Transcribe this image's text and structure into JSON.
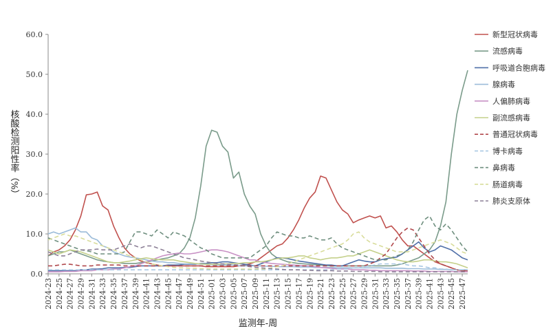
{
  "chart_data": {
    "type": "line",
    "xlabel": "监测年-周",
    "ylabel": "核酸检测阳性率（%）",
    "ylim": [
      0,
      60
    ],
    "yticks": [
      "0.0",
      "10.0",
      "20.0",
      "30.0",
      "40.0",
      "50.0",
      "60.0"
    ],
    "grid": false,
    "legend": "right",
    "x": [
      "2024-23",
      "2024-24",
      "2024-25",
      "2024-26",
      "2024-27",
      "2024-28",
      "2024-29",
      "2024-30",
      "2024-31",
      "2024-32",
      "2024-33",
      "2024-34",
      "2024-35",
      "2024-36",
      "2024-37",
      "2024-38",
      "2024-39",
      "2024-40",
      "2024-41",
      "2024-42",
      "2024-43",
      "2024-44",
      "2024-45",
      "2024-46",
      "2024-47",
      "2024-48",
      "2024-49",
      "2024-50",
      "2024-51",
      "2024-52",
      "2025-01",
      "2025-02",
      "2025-03",
      "2025-04",
      "2025-05",
      "2025-06",
      "2025-07",
      "2025-08",
      "2025-09",
      "2025-10",
      "2025-11",
      "2025-12",
      "2025-13",
      "2025-14",
      "2025-15",
      "2025-16",
      "2025-17",
      "2025-18",
      "2025-19",
      "2025-20",
      "2025-21",
      "2025-22",
      "2025-23",
      "2025-24",
      "2025-25",
      "2025-26",
      "2025-27",
      "2025-28",
      "2025-29",
      "2025-30",
      "2025-31",
      "2025-32",
      "2025-33",
      "2025-34",
      "2025-35",
      "2025-36",
      "2025-37",
      "2025-38",
      "2025-39",
      "2025-40",
      "2025-41",
      "2025-42",
      "2025-43",
      "2025-44",
      "2025-45",
      "2025-46",
      "2025-47",
      "2025-48"
    ],
    "xtick_labels": [
      "2024-23",
      "2024-25",
      "2024-27",
      "2024-29",
      "2024-31",
      "2024-33",
      "2024-35",
      "2024-37",
      "2024-39",
      "2024-41",
      "2024-43",
      "2024-45",
      "2024-47",
      "2024-49",
      "2024-51",
      "2025-01",
      "2025-03",
      "2025-05",
      "2025-07",
      "2025-09",
      "2025-11",
      "2025-13",
      "2025-15",
      "2025-17",
      "2025-19",
      "2025-21",
      "2025-23",
      "2025-25",
      "2025-27",
      "2025-29",
      "2025-31",
      "2025-33",
      "2025-35",
      "2025-37",
      "2025-39",
      "2025-41",
      "2025-43",
      "2025-45",
      "2025-47"
    ],
    "series": [
      {
        "name": "新型冠状病毒",
        "color": "#c0504d",
        "dash": false,
        "values": [
          4.5,
          5.5,
          6.0,
          7.0,
          8.5,
          11.0,
          14.5,
          19.8,
          20.0,
          20.5,
          17.0,
          16.0,
          12.0,
          9.0,
          6.5,
          5.0,
          4.0,
          3.2,
          2.8,
          2.5,
          2.2,
          2.0,
          2.0,
          2.0,
          2.0,
          2.0,
          2.0,
          2.0,
          2.0,
          1.8,
          1.8,
          1.8,
          1.8,
          1.8,
          1.8,
          2.0,
          2.2,
          2.5,
          3.0,
          4.0,
          5.0,
          6.0,
          7.0,
          7.5,
          9.0,
          11.0,
          13.5,
          16.5,
          19.0,
          20.5,
          24.5,
          24.0,
          21.0,
          18.0,
          16.0,
          15.0,
          12.8,
          13.5,
          14.0,
          14.5,
          14.0,
          14.5,
          11.5,
          12.0,
          10.5,
          8.5,
          7.0,
          7.0,
          6.0,
          5.0,
          4.0,
          3.0,
          2.5,
          2.0,
          1.5,
          1.0,
          0.8,
          0.8
        ]
      },
      {
        "name": "流感病毒",
        "color": "#7a9b8a",
        "dash": false,
        "values": [
          4.5,
          5.0,
          5.5,
          5.5,
          6.0,
          5.5,
          5.0,
          4.5,
          4.0,
          3.5,
          3.2,
          3.0,
          2.8,
          2.8,
          2.6,
          2.6,
          2.6,
          2.8,
          3.0,
          3.2,
          3.5,
          3.8,
          4.0,
          4.5,
          5.0,
          6.5,
          9.0,
          14.0,
          22.0,
          32.0,
          36.0,
          35.5,
          32.0,
          30.5,
          24.0,
          25.5,
          20.0,
          17.0,
          15.0,
          10.0,
          7.0,
          5.0,
          4.0,
          3.5,
          3.0,
          2.8,
          2.6,
          2.5,
          2.4,
          2.3,
          2.2,
          2.1,
          2.0,
          2.0,
          2.0,
          2.0,
          2.0,
          2.0,
          2.0,
          2.0,
          2.0,
          2.0,
          2.0,
          2.0,
          2.2,
          2.5,
          3.0,
          3.5,
          4.0,
          5.0,
          6.0,
          8.0,
          12.0,
          18.0,
          30.0,
          40.0,
          46.0,
          51.0
        ]
      },
      {
        "name": "呼吸道合胞病毒",
        "color": "#4f6fa8",
        "dash": false,
        "values": [
          0.8,
          0.8,
          0.8,
          0.8,
          0.8,
          0.8,
          1.0,
          1.0,
          1.2,
          1.2,
          1.3,
          1.5,
          1.5,
          1.5,
          1.6,
          1.6,
          1.8,
          2.0,
          2.0,
          2.0,
          2.0,
          2.0,
          2.2,
          2.2,
          2.2,
          2.4,
          2.4,
          2.4,
          2.6,
          2.6,
          2.8,
          2.8,
          3.0,
          3.0,
          2.8,
          2.6,
          2.4,
          2.2,
          2.0,
          2.5,
          3.0,
          3.5,
          4.0,
          4.0,
          3.8,
          3.5,
          3.2,
          3.0,
          2.8,
          2.6,
          2.4,
          2.2,
          2.2,
          2.0,
          2.0,
          2.5,
          3.0,
          3.5,
          3.2,
          3.0,
          3.0,
          3.5,
          3.8,
          4.0,
          4.2,
          5.0,
          6.0,
          7.0,
          8.0,
          6.5,
          5.5,
          6.0,
          7.0,
          6.5,
          6.0,
          5.0,
          4.0,
          3.5
        ]
      },
      {
        "name": "腺病毒",
        "color": "#9bbbd9",
        "dash": false,
        "values": [
          10.0,
          10.5,
          10.0,
          10.5,
          11.0,
          11.5,
          10.5,
          10.5,
          9.0,
          8.5,
          7.0,
          6.5,
          5.5,
          5.0,
          4.5,
          4.2,
          4.0,
          3.8,
          3.5,
          3.2,
          3.0,
          3.0,
          2.8,
          2.8,
          2.6,
          2.5,
          2.5,
          2.5,
          2.4,
          2.4,
          2.3,
          2.2,
          2.2,
          2.2,
          2.2,
          2.0,
          2.0,
          2.0,
          2.0,
          2.0,
          1.9,
          1.9,
          1.8,
          1.8,
          1.8,
          1.8,
          1.7,
          1.7,
          1.7,
          1.6,
          1.6,
          1.6,
          1.6,
          1.5,
          1.5,
          1.5,
          1.5,
          1.5,
          1.5,
          1.5,
          1.5,
          1.5,
          1.4,
          1.4,
          1.4,
          1.4,
          1.3,
          1.3,
          1.3,
          1.2,
          1.2,
          1.2,
          1.1,
          1.1,
          1.0,
          1.0,
          1.0,
          1.0
        ]
      },
      {
        "name": "人偏肺病毒",
        "color": "#c891c5",
        "dash": false,
        "values": [
          0.5,
          0.5,
          0.5,
          0.6,
          0.6,
          0.6,
          0.8,
          0.8,
          0.8,
          1.0,
          1.0,
          1.0,
          1.2,
          1.2,
          1.5,
          1.8,
          2.0,
          2.5,
          3.0,
          3.5,
          4.0,
          4.5,
          4.8,
          5.0,
          5.2,
          5.0,
          5.0,
          5.2,
          5.5,
          5.8,
          6.0,
          6.0,
          5.8,
          5.5,
          5.0,
          4.5,
          4.0,
          3.5,
          3.5,
          3.0,
          2.8,
          2.6,
          2.5,
          2.4,
          2.3,
          2.2,
          2.1,
          2.0,
          2.0,
          1.8,
          1.6,
          1.5,
          1.4,
          1.2,
          1.2,
          1.2,
          1.0,
          1.0,
          1.0,
          0.9,
          0.9,
          0.8,
          0.8,
          0.8,
          0.8,
          0.8,
          0.8,
          0.7,
          0.7,
          0.7,
          0.6,
          0.6,
          0.6,
          0.6,
          0.6,
          0.5,
          0.5,
          0.5
        ]
      },
      {
        "name": "副流感病毒",
        "color": "#c4d08a",
        "dash": false,
        "values": [
          6.0,
          5.5,
          5.0,
          5.5,
          6.0,
          5.8,
          5.5,
          5.0,
          4.5,
          4.0,
          3.5,
          3.0,
          2.8,
          2.8,
          3.0,
          3.2,
          3.5,
          3.8,
          4.0,
          3.8,
          3.6,
          3.5,
          3.5,
          3.5,
          3.2,
          3.0,
          2.8,
          2.6,
          2.5,
          2.4,
          2.4,
          2.4,
          2.5,
          2.5,
          2.6,
          2.6,
          2.8,
          2.8,
          3.0,
          3.0,
          3.2,
          3.5,
          3.8,
          4.0,
          4.0,
          4.2,
          4.5,
          4.5,
          4.0,
          3.8,
          3.5,
          3.8,
          4.0,
          4.0,
          4.2,
          4.5,
          4.5,
          5.0,
          5.5,
          6.0,
          5.5,
          5.0,
          4.5,
          4.0,
          3.5,
          3.2,
          3.0,
          3.0,
          3.2,
          3.5,
          3.5,
          3.2,
          3.0,
          3.0,
          2.8,
          2.5,
          2.0,
          1.5
        ]
      },
      {
        "name": "普通冠状病毒",
        "color": "#b0474b",
        "dash": true,
        "values": [
          2.0,
          2.0,
          2.2,
          2.4,
          2.4,
          2.2,
          2.0,
          2.0,
          2.0,
          2.2,
          2.2,
          2.2,
          2.2,
          2.2,
          2.0,
          2.0,
          2.0,
          2.0,
          2.0,
          2.0,
          2.0,
          2.0,
          2.0,
          2.0,
          2.0,
          2.0,
          2.0,
          2.0,
          2.0,
          2.0,
          2.0,
          2.0,
          2.0,
          2.0,
          2.0,
          2.0,
          2.0,
          2.0,
          2.0,
          2.0,
          2.0,
          2.0,
          2.0,
          2.0,
          2.0,
          2.0,
          2.0,
          2.0,
          2.0,
          2.0,
          2.0,
          2.0,
          2.0,
          2.0,
          2.0,
          2.0,
          2.0,
          2.0,
          2.0,
          2.5,
          3.0,
          4.0,
          5.0,
          7.0,
          9.0,
          10.5,
          11.5,
          11.0,
          9.0,
          7.0,
          5.0,
          3.5,
          2.5,
          2.0,
          1.5,
          1.0,
          0.8,
          0.8
        ]
      },
      {
        "name": "博卡病毒",
        "color": "#a9c8e3",
        "dash": true,
        "values": [
          1.0,
          1.0,
          1.0,
          1.0,
          1.0,
          1.0,
          1.0,
          1.0,
          1.0,
          1.0,
          1.0,
          1.0,
          1.0,
          1.0,
          1.0,
          1.0,
          1.0,
          1.0,
          1.0,
          1.0,
          1.0,
          1.0,
          1.0,
          1.0,
          1.0,
          1.0,
          1.0,
          1.0,
          1.0,
          1.0,
          1.0,
          1.0,
          1.0,
          1.0,
          1.0,
          1.0,
          1.0,
          1.0,
          1.0,
          1.0,
          1.0,
          1.0,
          1.0,
          1.0,
          1.0,
          1.0,
          1.0,
          1.0,
          1.0,
          1.0,
          1.0,
          1.0,
          1.0,
          1.2,
          1.2,
          1.2,
          1.5,
          1.5,
          1.8,
          2.0,
          2.2,
          2.5,
          2.5,
          2.5,
          2.5,
          2.5,
          2.2,
          2.0,
          2.0,
          1.8,
          1.5,
          1.5,
          1.2,
          1.2,
          1.0,
          1.0,
          1.0,
          1.0
        ]
      },
      {
        "name": "鼻病毒",
        "color": "#6e8e7e",
        "dash": true,
        "values": [
          9.0,
          8.5,
          8.0,
          7.5,
          7.0,
          6.5,
          6.0,
          5.8,
          5.5,
          5.0,
          5.0,
          5.0,
          5.0,
          5.0,
          5.5,
          8.0,
          10.5,
          10.5,
          10.0,
          9.5,
          11.0,
          10.0,
          9.0,
          10.5,
          10.0,
          9.5,
          8.5,
          7.5,
          6.5,
          6.0,
          5.0,
          4.5,
          4.0,
          4.0,
          4.0,
          4.0,
          4.0,
          4.0,
          5.0,
          6.0,
          7.0,
          9.0,
          10.5,
          10.0,
          9.5,
          9.5,
          9.0,
          9.0,
          9.5,
          9.0,
          8.5,
          8.5,
          9.0,
          7.5,
          6.5,
          6.0,
          5.5,
          5.0,
          4.5,
          4.0,
          3.5,
          3.5,
          3.5,
          4.0,
          4.5,
          5.0,
          6.0,
          8.0,
          11.0,
          13.5,
          14.5,
          12.0,
          11.0,
          12.5,
          11.0,
          9.0,
          7.0,
          5.5
        ]
      },
      {
        "name": "肠道病毒",
        "color": "#d8dc9a",
        "dash": true,
        "values": [
          8.5,
          9.0,
          9.5,
          10.0,
          9.5,
          9.5,
          9.0,
          8.5,
          8.0,
          7.5,
          7.0,
          6.5,
          6.0,
          5.5,
          5.0,
          4.5,
          4.0,
          3.5,
          3.0,
          2.5,
          2.2,
          2.0,
          1.8,
          1.6,
          1.5,
          1.5,
          1.4,
          1.4,
          1.3,
          1.3,
          1.2,
          1.2,
          1.2,
          1.2,
          1.2,
          1.2,
          1.2,
          1.2,
          1.2,
          1.2,
          1.2,
          1.5,
          1.8,
          2.0,
          2.5,
          3.0,
          3.5,
          4.0,
          4.5,
          5.0,
          5.5,
          6.0,
          6.5,
          7.0,
          7.5,
          8.5,
          10.0,
          10.5,
          9.0,
          8.0,
          7.5,
          7.0,
          6.5,
          6.0,
          5.5,
          5.5,
          5.5,
          6.0,
          6.5,
          7.0,
          7.5,
          8.0,
          8.5,
          8.0,
          7.5,
          6.5,
          5.5,
          5.0
        ]
      },
      {
        "name": "肺炎支原体",
        "color": "#8c7f96",
        "dash": true,
        "values": [
          5.5,
          5.0,
          4.5,
          4.5,
          5.0,
          5.5,
          6.0,
          6.0,
          6.0,
          6.2,
          6.0,
          6.0,
          6.0,
          6.5,
          7.0,
          7.5,
          7.0,
          6.5,
          7.0,
          7.0,
          6.5,
          6.0,
          5.5,
          5.0,
          4.5,
          4.0,
          3.8,
          3.5,
          3.2,
          3.0,
          2.8,
          2.6,
          2.5,
          2.4,
          2.3,
          2.2,
          2.0,
          1.8,
          1.6,
          1.5,
          1.4,
          1.3,
          1.2,
          1.1,
          1.0,
          1.0,
          1.0,
          0.9,
          0.9,
          0.8,
          0.8,
          0.8,
          0.8,
          0.7,
          0.7,
          0.7,
          0.6,
          0.6,
          0.6,
          0.6,
          0.6,
          0.5,
          0.5,
          0.5,
          0.5,
          0.5,
          0.5,
          0.5,
          0.5,
          0.5,
          0.5,
          0.5,
          0.5,
          0.5,
          0.5,
          0.5,
          0.5,
          0.5
        ]
      }
    ]
  }
}
